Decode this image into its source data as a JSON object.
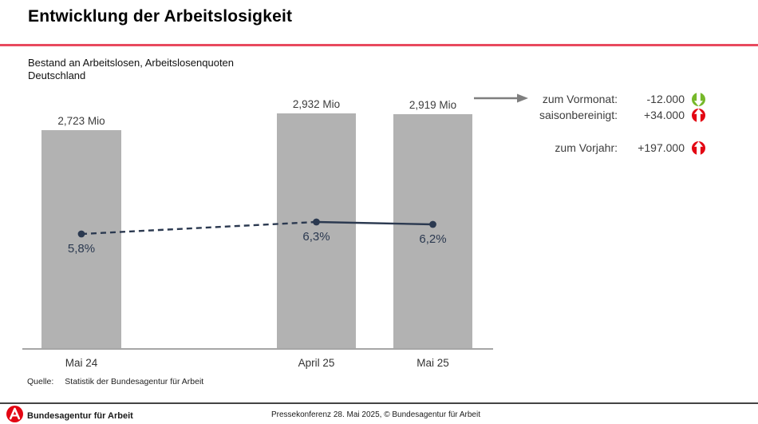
{
  "page": {
    "title": "Entwicklung der Arbeitslosigkeit",
    "subtitle_line1": "Bestand an Arbeitslosen, Arbeitslosenquoten",
    "subtitle_line2": "Deutschland",
    "source_label": "Quelle:",
    "source_text": "Statistik der Bundesagentur für Arbeit"
  },
  "chart_data": {
    "type": "bar",
    "categories": [
      "Mai 24",
      "April 25",
      "Mai 25"
    ],
    "series": [
      {
        "name": "Bestand an Arbeitslosen",
        "type": "bar",
        "unit": "Mio",
        "values": [
          2.723,
          2.932,
          2.919
        ],
        "labels": [
          "2,723 Mio",
          "2,932 Mio",
          "2,919 Mio"
        ]
      },
      {
        "name": "Arbeitslosenquote",
        "type": "line",
        "unit": "%",
        "values": [
          5.8,
          6.3,
          6.2
        ],
        "labels": [
          "5,8%",
          "6,3%",
          "6,2%"
        ],
        "dashed_segments": [
          0
        ]
      }
    ],
    "ylim": [
      0,
      3.2
    ],
    "grid": false,
    "legend": "none",
    "bar_color": "#b2b2b2",
    "line_color": "#2b3950"
  },
  "stats_panel": {
    "rows": [
      {
        "label": "zum Vormonat:",
        "value": "-12.000",
        "icon": "arrow-down-circle",
        "icon_color": "#76b82a"
      },
      {
        "label": "saisonbereinigt:",
        "value": "+34.000",
        "icon": "arrow-up-circle",
        "icon_color": "#e30613"
      },
      {
        "label": "zum Vorjahr:",
        "value": "+197.000",
        "icon": "arrow-up-circle",
        "icon_color": "#e30613"
      }
    ]
  },
  "footer": {
    "brand": "Bundesagentur für Arbeit",
    "note": "Pressekonferenz 28. Mai 2025, © Bundesagentur für Arbeit"
  },
  "colors": {
    "accent_red": "#e8495e",
    "logo_red": "#e30613",
    "arrow_gray": "#7f7f7f"
  }
}
